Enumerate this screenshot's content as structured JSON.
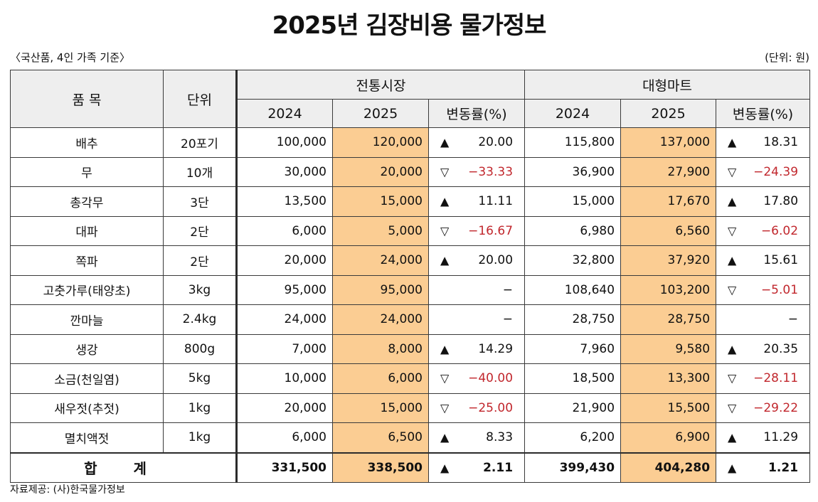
{
  "title": "2025년 김장비용 물가정보",
  "note_left": "〈국산품, 4인 가족 기준〉",
  "note_right": "(단위: 원)",
  "source": "자료제공: (사)한국물가정보",
  "headers": {
    "item": "품 목",
    "unit": "단위",
    "market": "전통시장",
    "mart": "대형마트",
    "y2024": "2024",
    "y2025": "2025",
    "change": "변동률(%)"
  },
  "rows": [
    {
      "item": "배추",
      "unit": "20포기",
      "m2024": "100,000",
      "m2025": "120,000",
      "m_mark": "▲",
      "m_chg": "20.00",
      "t2024": "115,800",
      "t2025": "137,000",
      "t_mark": "▲",
      "t_chg": "18.31"
    },
    {
      "item": "무",
      "unit": "10개",
      "m2024": "30,000",
      "m2025": "20,000",
      "m_mark": "▽",
      "m_chg": "−33.33",
      "t2024": "36,900",
      "t2025": "27,900",
      "t_mark": "▽",
      "t_chg": "−24.39"
    },
    {
      "item": "총각무",
      "unit": "3단",
      "m2024": "13,500",
      "m2025": "15,000",
      "m_mark": "▲",
      "m_chg": "11.11",
      "t2024": "15,000",
      "t2025": "17,670",
      "t_mark": "▲",
      "t_chg": "17.80"
    },
    {
      "item": "대파",
      "unit": "2단",
      "m2024": "6,000",
      "m2025": "5,000",
      "m_mark": "▽",
      "m_chg": "−16.67",
      "t2024": "6,980",
      "t2025": "6,560",
      "t_mark": "▽",
      "t_chg": "−6.02"
    },
    {
      "item": "쪽파",
      "unit": "2단",
      "m2024": "20,000",
      "m2025": "24,000",
      "m_mark": "▲",
      "m_chg": "20.00",
      "t2024": "32,800",
      "t2025": "37,920",
      "t_mark": "▲",
      "t_chg": "15.61"
    },
    {
      "item": "고춧가루(태양초)",
      "unit": "3kg",
      "m2024": "95,000",
      "m2025": "95,000",
      "m_mark": "",
      "m_chg": "−",
      "t2024": "108,640",
      "t2025": "103,200",
      "t_mark": "▽",
      "t_chg": "−5.01"
    },
    {
      "item": "깐마늘",
      "unit": "2.4kg",
      "m2024": "24,000",
      "m2025": "24,000",
      "m_mark": "",
      "m_chg": "−",
      "t2024": "28,750",
      "t2025": "28,750",
      "t_mark": "",
      "t_chg": "−"
    },
    {
      "item": "생강",
      "unit": "800g",
      "m2024": "7,000",
      "m2025": "8,000",
      "m_mark": "▲",
      "m_chg": "14.29",
      "t2024": "7,960",
      "t2025": "9,580",
      "t_mark": "▲",
      "t_chg": "20.35"
    },
    {
      "item": "소금(천일염)",
      "unit": "5kg",
      "m2024": "10,000",
      "m2025": "6,000",
      "m_mark": "▽",
      "m_chg": "−40.00",
      "t2024": "18,500",
      "t2025": "13,300",
      "t_mark": "▽",
      "t_chg": "−28.11"
    },
    {
      "item": "새우젓(추젓)",
      "unit": "1kg",
      "m2024": "20,000",
      "m2025": "15,000",
      "m_mark": "▽",
      "m_chg": "−25.00",
      "t2024": "21,900",
      "t2025": "15,500",
      "t_mark": "▽",
      "t_chg": "−29.22"
    },
    {
      "item": "멸치액젓",
      "unit": "1kg",
      "m2024": "6,000",
      "m2025": "6,500",
      "m_mark": "▲",
      "m_chg": "8.33",
      "t2024": "6,200",
      "t2025": "6,900",
      "t_mark": "▲",
      "t_chg": "11.29"
    }
  ],
  "total": {
    "label": "합 계",
    "m2024": "331,500",
    "m2025": "338,500",
    "m_mark": "▲",
    "m_chg": "2.11",
    "t2024": "399,430",
    "t2025": "404,280",
    "t_mark": "▲",
    "t_chg": "1.21"
  },
  "colors": {
    "highlight": "#fbcd93",
    "header_bg": "#eeeeee",
    "negative": "#c1272d"
  }
}
